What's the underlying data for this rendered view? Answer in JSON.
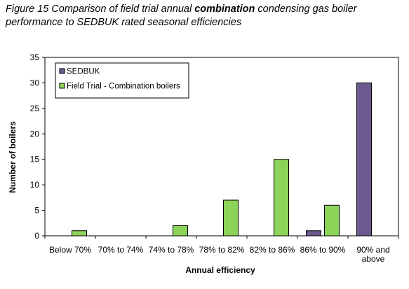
{
  "caption": {
    "part1": "Figure 15 Comparison of field trial annual ",
    "bold": "combination",
    "part2": " condensing gas boiler performance to SEDBUK rated seasonal efficiencies"
  },
  "colors": {
    "sedbuk": "#6b5a8e",
    "field_trial": "#8cd35a"
  },
  "chart_data": {
    "type": "bar",
    "categories": [
      "Below 70%",
      "70% to 74%",
      "74% to 78%",
      "78% to 82%",
      "82% to 86%",
      "86% to 90%",
      "90% and above"
    ],
    "category_lines": [
      [
        "Below 70%"
      ],
      [
        "70% to 74%"
      ],
      [
        "74% to 78%"
      ],
      [
        "78% to 82%"
      ],
      [
        "82% to 86%"
      ],
      [
        "86% to 90%"
      ],
      [
        "90% and",
        "above"
      ]
    ],
    "series": [
      {
        "name": "SEDBUK",
        "values": [
          0,
          0,
          0,
          0,
          0,
          1,
          30
        ]
      },
      {
        "name": "Field Trial - Combination boilers",
        "values": [
          1,
          0,
          2,
          7,
          15,
          6,
          0
        ]
      }
    ],
    "xlabel": "Annual efficiency",
    "ylabel": "Number of boilers",
    "ylim": [
      0,
      35
    ],
    "yticks": [
      0,
      5,
      10,
      15,
      20,
      25,
      30,
      35
    ],
    "grid": false,
    "legend_position": "top-left"
  }
}
